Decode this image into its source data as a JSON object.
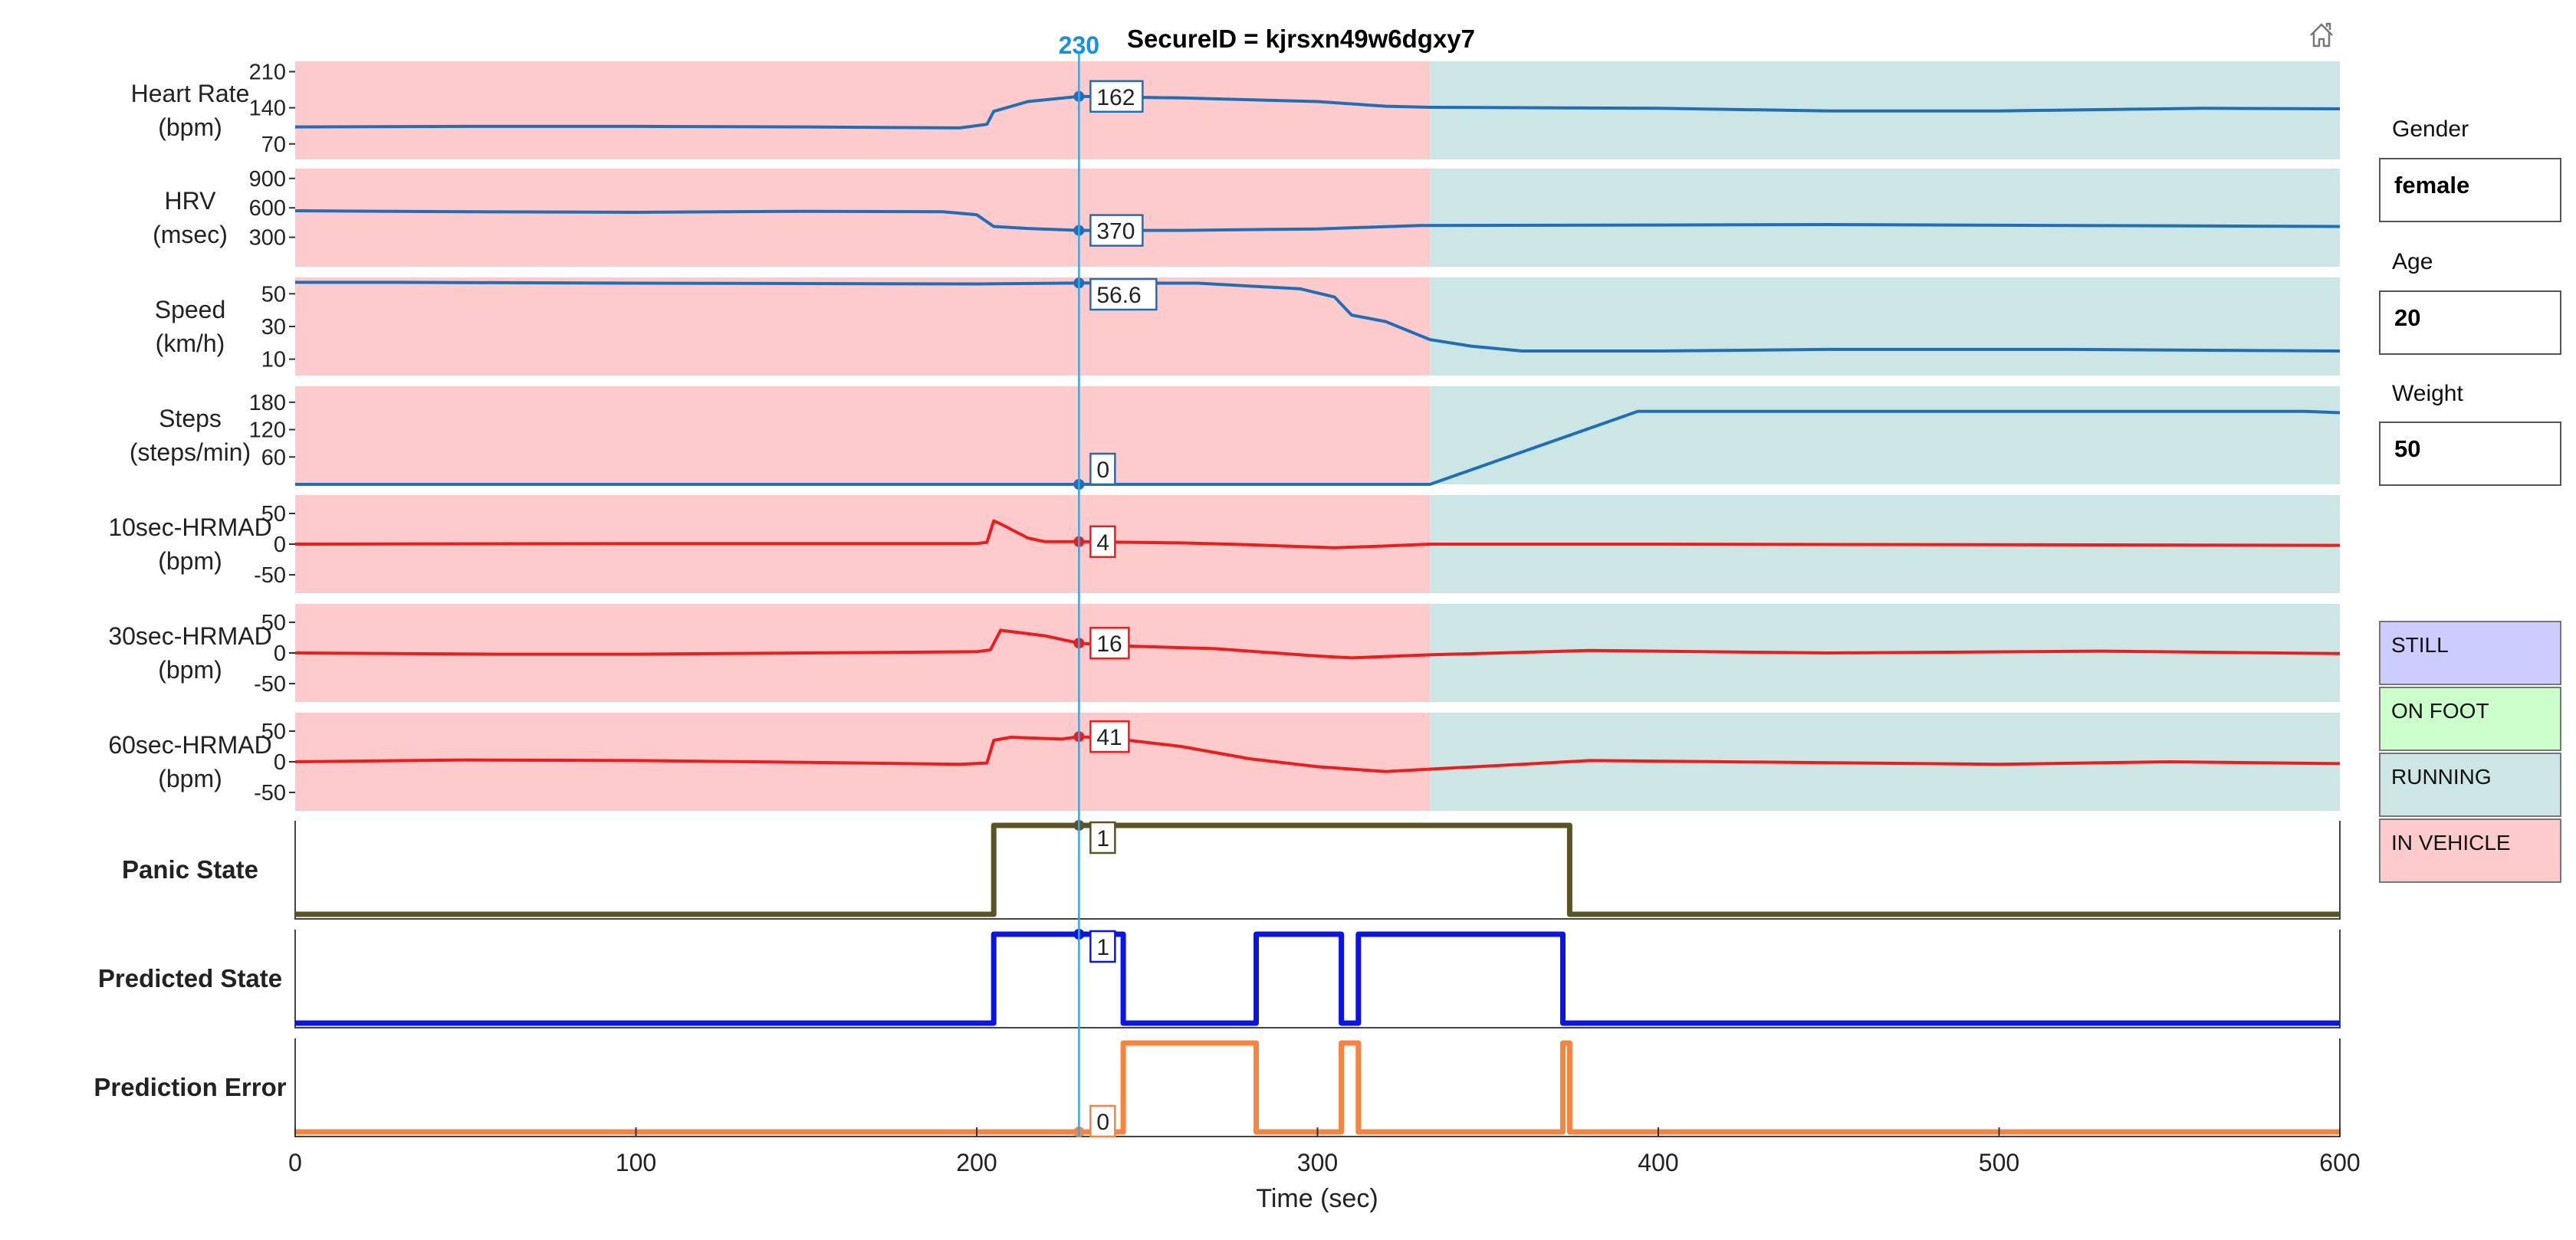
{
  "chart_data": {
    "type": "line",
    "title": "SecureID = kjrsxn49w6dgxy7",
    "xlabel": "Time (sec)",
    "xlim": [
      0,
      600
    ],
    "xticks": [
      0,
      100,
      200,
      300,
      400,
      500,
      600
    ],
    "cursor": {
      "x": 230,
      "label": "230"
    },
    "background_bands": [
      {
        "from": 0,
        "to": 333,
        "state": "IN VEHICLE",
        "color": "#fdcbcb"
      },
      {
        "from": 333,
        "to": 600,
        "state": "RUNNING",
        "color": "#cce5e5"
      }
    ],
    "panels": [
      {
        "label_lines": [
          "Heart Rate",
          "(bpm)"
        ],
        "bold": false,
        "shaded": true,
        "ylim": [
          40,
          230
        ],
        "yticks": [
          70,
          140,
          210
        ],
        "color": "#1f6fb8",
        "line_width": 4,
        "cursor_value": "162",
        "x": [
          0,
          50,
          100,
          150,
          195,
          203,
          205,
          215,
          230,
          260,
          300,
          320,
          333,
          400,
          450,
          500,
          560,
          600
        ],
        "y": [
          103,
          104,
          104,
          103,
          101,
          108,
          133,
          152,
          162,
          159,
          152,
          143,
          141,
          139,
          134,
          134,
          139,
          138
        ]
      },
      {
        "label_lines": [
          "HRV",
          "(msec)"
        ],
        "bold": false,
        "shaded": true,
        "ylim": [
          0,
          1000
        ],
        "yticks": [
          300,
          600,
          900
        ],
        "color": "#1f6fb8",
        "line_width": 4,
        "cursor_value": "370",
        "x": [
          0,
          50,
          100,
          150,
          190,
          200,
          205,
          215,
          230,
          260,
          300,
          330,
          400,
          450,
          520,
          600
        ],
        "y": [
          570,
          560,
          555,
          565,
          560,
          530,
          410,
          390,
          370,
          370,
          385,
          420,
          425,
          430,
          420,
          410
        ]
      },
      {
        "label_lines": [
          "Speed",
          "(km/h)"
        ],
        "bold": false,
        "shaded": true,
        "ylim": [
          0,
          60
        ],
        "yticks": [
          10,
          30,
          50
        ],
        "color": "#1f6fb8",
        "line_width": 4,
        "cursor_value": "56.6",
        "x": [
          0,
          30,
          100,
          200,
          230,
          265,
          295,
          305,
          310,
          320,
          333,
          345,
          360,
          400,
          450,
          520,
          600
        ],
        "y": [
          57,
          57,
          56.5,
          56,
          56.6,
          56.5,
          53,
          48,
          37,
          33,
          22,
          18,
          15,
          15,
          16,
          16,
          15
        ]
      },
      {
        "label_lines": [
          "Steps",
          "(steps/min)"
        ],
        "bold": false,
        "shaded": true,
        "ylim": [
          0,
          215
        ],
        "yticks": [
          60,
          120,
          180
        ],
        "color": "#1f6fb8",
        "line_width": 4,
        "cursor_value": "0",
        "x": [
          0,
          230,
          333,
          394,
          590,
          600
        ],
        "y": [
          0,
          0,
          0,
          160,
          160,
          157
        ]
      },
      {
        "label_lines": [
          "10sec-HRMAD",
          "(bpm)"
        ],
        "bold": false,
        "shaded": true,
        "ylim": [
          -80,
          80
        ],
        "yticks": [
          -50,
          0,
          50
        ],
        "color": "#ee1c1c",
        "line_width": 4,
        "cursor_value": "4",
        "x": [
          0,
          100,
          200,
          203,
          205,
          207,
          215,
          220,
          230,
          260,
          280,
          305,
          320,
          333,
          400,
          500,
          600
        ],
        "y": [
          0,
          1,
          1,
          3,
          38,
          33,
          10,
          4,
          4,
          2,
          -1,
          -6,
          -3,
          0,
          0,
          -1,
          -2
        ]
      },
      {
        "label_lines": [
          "30sec-HRMAD",
          "(bpm)"
        ],
        "bold": false,
        "shaded": true,
        "ylim": [
          -80,
          80
        ],
        "yticks": [
          -50,
          0,
          50
        ],
        "color": "#ee1c1c",
        "line_width": 4,
        "cursor_value": "16",
        "x": [
          0,
          60,
          100,
          150,
          200,
          204,
          207,
          220,
          230,
          240,
          270,
          300,
          310,
          333,
          380,
          450,
          530,
          600
        ],
        "y": [
          0,
          -2,
          -2,
          0,
          2,
          5,
          37,
          28,
          16,
          12,
          7,
          -5,
          -8,
          -3,
          4,
          0,
          3,
          -1
        ]
      },
      {
        "label_lines": [
          "60sec-HRMAD",
          "(bpm)"
        ],
        "bold": false,
        "shaded": true,
        "ylim": [
          -80,
          80
        ],
        "yticks": [
          -50,
          0,
          50
        ],
        "color": "#ee1c1c",
        "line_width": 4,
        "cursor_value": "41",
        "x": [
          0,
          50,
          100,
          150,
          195,
          203,
          205,
          210,
          225,
          230,
          240,
          260,
          280,
          300,
          320,
          333,
          360,
          380,
          420,
          500,
          550,
          600
        ],
        "y": [
          0,
          3,
          2,
          -1,
          -4,
          -2,
          35,
          40,
          37,
          41,
          38,
          25,
          5,
          -8,
          -16,
          -12,
          -4,
          2,
          0,
          -4,
          0,
          -3
        ]
      },
      {
        "label_lines": [
          "Panic State"
        ],
        "bold": true,
        "shaded": false,
        "ylim": [
          0,
          1
        ],
        "yticks": [],
        "color": "#585426",
        "line_width": 7,
        "cursor_value": "1",
        "x": [
          0,
          205,
          205,
          374,
          374,
          600
        ],
        "y": [
          0,
          0,
          1,
          1,
          0,
          0
        ]
      },
      {
        "label_lines": [
          "Predicted State"
        ],
        "bold": true,
        "shaded": false,
        "ylim": [
          0,
          1
        ],
        "yticks": [],
        "color": "#0a14e8",
        "line_width": 7,
        "cursor_value": "1",
        "x": [
          0,
          205,
          205,
          243,
          243,
          282,
          282,
          307,
          307,
          312,
          312,
          372,
          372,
          600
        ],
        "y": [
          0,
          0,
          1,
          1,
          0,
          0,
          1,
          1,
          0,
          0,
          1,
          1,
          0,
          0
        ]
      },
      {
        "label_lines": [
          "Prediction Error"
        ],
        "bold": true,
        "shaded": false,
        "ylim": [
          0,
          1
        ],
        "yticks": [],
        "color": "#f4843f",
        "line_width": 7,
        "cursor_value": "0",
        "x": [
          0,
          243,
          243,
          282,
          282,
          307,
          307,
          312,
          312,
          372,
          372,
          374,
          374,
          600
        ],
        "y": [
          0,
          0,
          1,
          1,
          0,
          0,
          1,
          1,
          0,
          0,
          1,
          1,
          0,
          0
        ]
      }
    ]
  },
  "user_info": {
    "gender_label": "Gender",
    "gender_value": "female",
    "age_label": "Age",
    "age_value": "20",
    "weight_label": "Weight",
    "weight_value": "50"
  },
  "legend": [
    {
      "label": "STILL",
      "color": "#ccccff"
    },
    {
      "label": "ON FOOT",
      "color": "#ccffcc"
    },
    {
      "label": "RUNNING",
      "color": "#cce5e5"
    },
    {
      "label": "IN VEHICLE",
      "color": "#fdcbcb"
    }
  ],
  "icons": {
    "home": "home-icon"
  }
}
